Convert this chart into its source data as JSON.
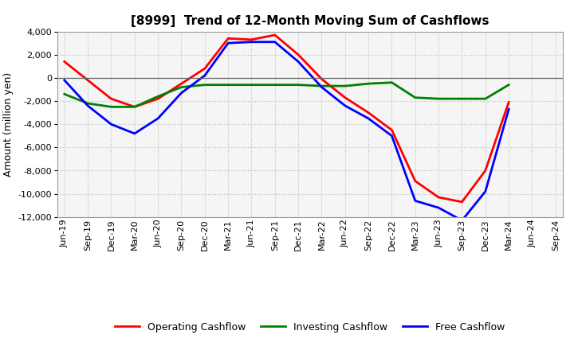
{
  "title": "[8999]  Trend of 12-Month Moving Sum of Cashflows",
  "ylabel": "Amount (million yen)",
  "ylim": [
    -12000,
    4000
  ],
  "yticks": [
    -12000,
    -10000,
    -8000,
    -6000,
    -4000,
    -2000,
    0,
    2000,
    4000
  ],
  "x_labels": [
    "Jun-19",
    "Sep-19",
    "Dec-19",
    "Mar-20",
    "Jun-20",
    "Sep-20",
    "Dec-20",
    "Mar-21",
    "Jun-21",
    "Sep-21",
    "Dec-21",
    "Mar-22",
    "Jun-22",
    "Sep-22",
    "Dec-22",
    "Mar-23",
    "Jun-23",
    "Sep-23",
    "Dec-23",
    "Mar-24",
    "Jun-24",
    "Sep-24"
  ],
  "operating_cashflow": [
    1400,
    -200,
    -1800,
    -2500,
    -1800,
    -500,
    800,
    3400,
    3300,
    3700,
    2000,
    -100,
    -1700,
    -3000,
    -4500,
    -8900,
    -10300,
    -10700,
    -8000,
    -2100,
    null,
    null
  ],
  "investing_cashflow": [
    -1400,
    -2200,
    -2500,
    -2500,
    -1600,
    -800,
    -600,
    -600,
    -600,
    -600,
    -600,
    -700,
    -700,
    -500,
    -400,
    -1700,
    -1800,
    -1800,
    -1800,
    -600,
    null,
    null
  ],
  "free_cashflow": [
    -200,
    -2400,
    -4000,
    -4800,
    -3500,
    -1300,
    200,
    3000,
    3100,
    3100,
    1400,
    -800,
    -2400,
    -3500,
    -5000,
    -10600,
    -11200,
    -12300,
    -9800,
    -2700,
    null,
    null
  ],
  "op_color": "#ff0000",
  "inv_color": "#008000",
  "free_color": "#0000ff",
  "line_width": 2.0,
  "background_color": "#ffffff",
  "plot_bg_color": "#f5f5f5",
  "grid_color": "#bbbbbb",
  "legend_labels": [
    "Operating Cashflow",
    "Investing Cashflow",
    "Free Cashflow"
  ],
  "title_fontsize": 11,
  "ylabel_fontsize": 9,
  "tick_fontsize": 8,
  "legend_fontsize": 9
}
